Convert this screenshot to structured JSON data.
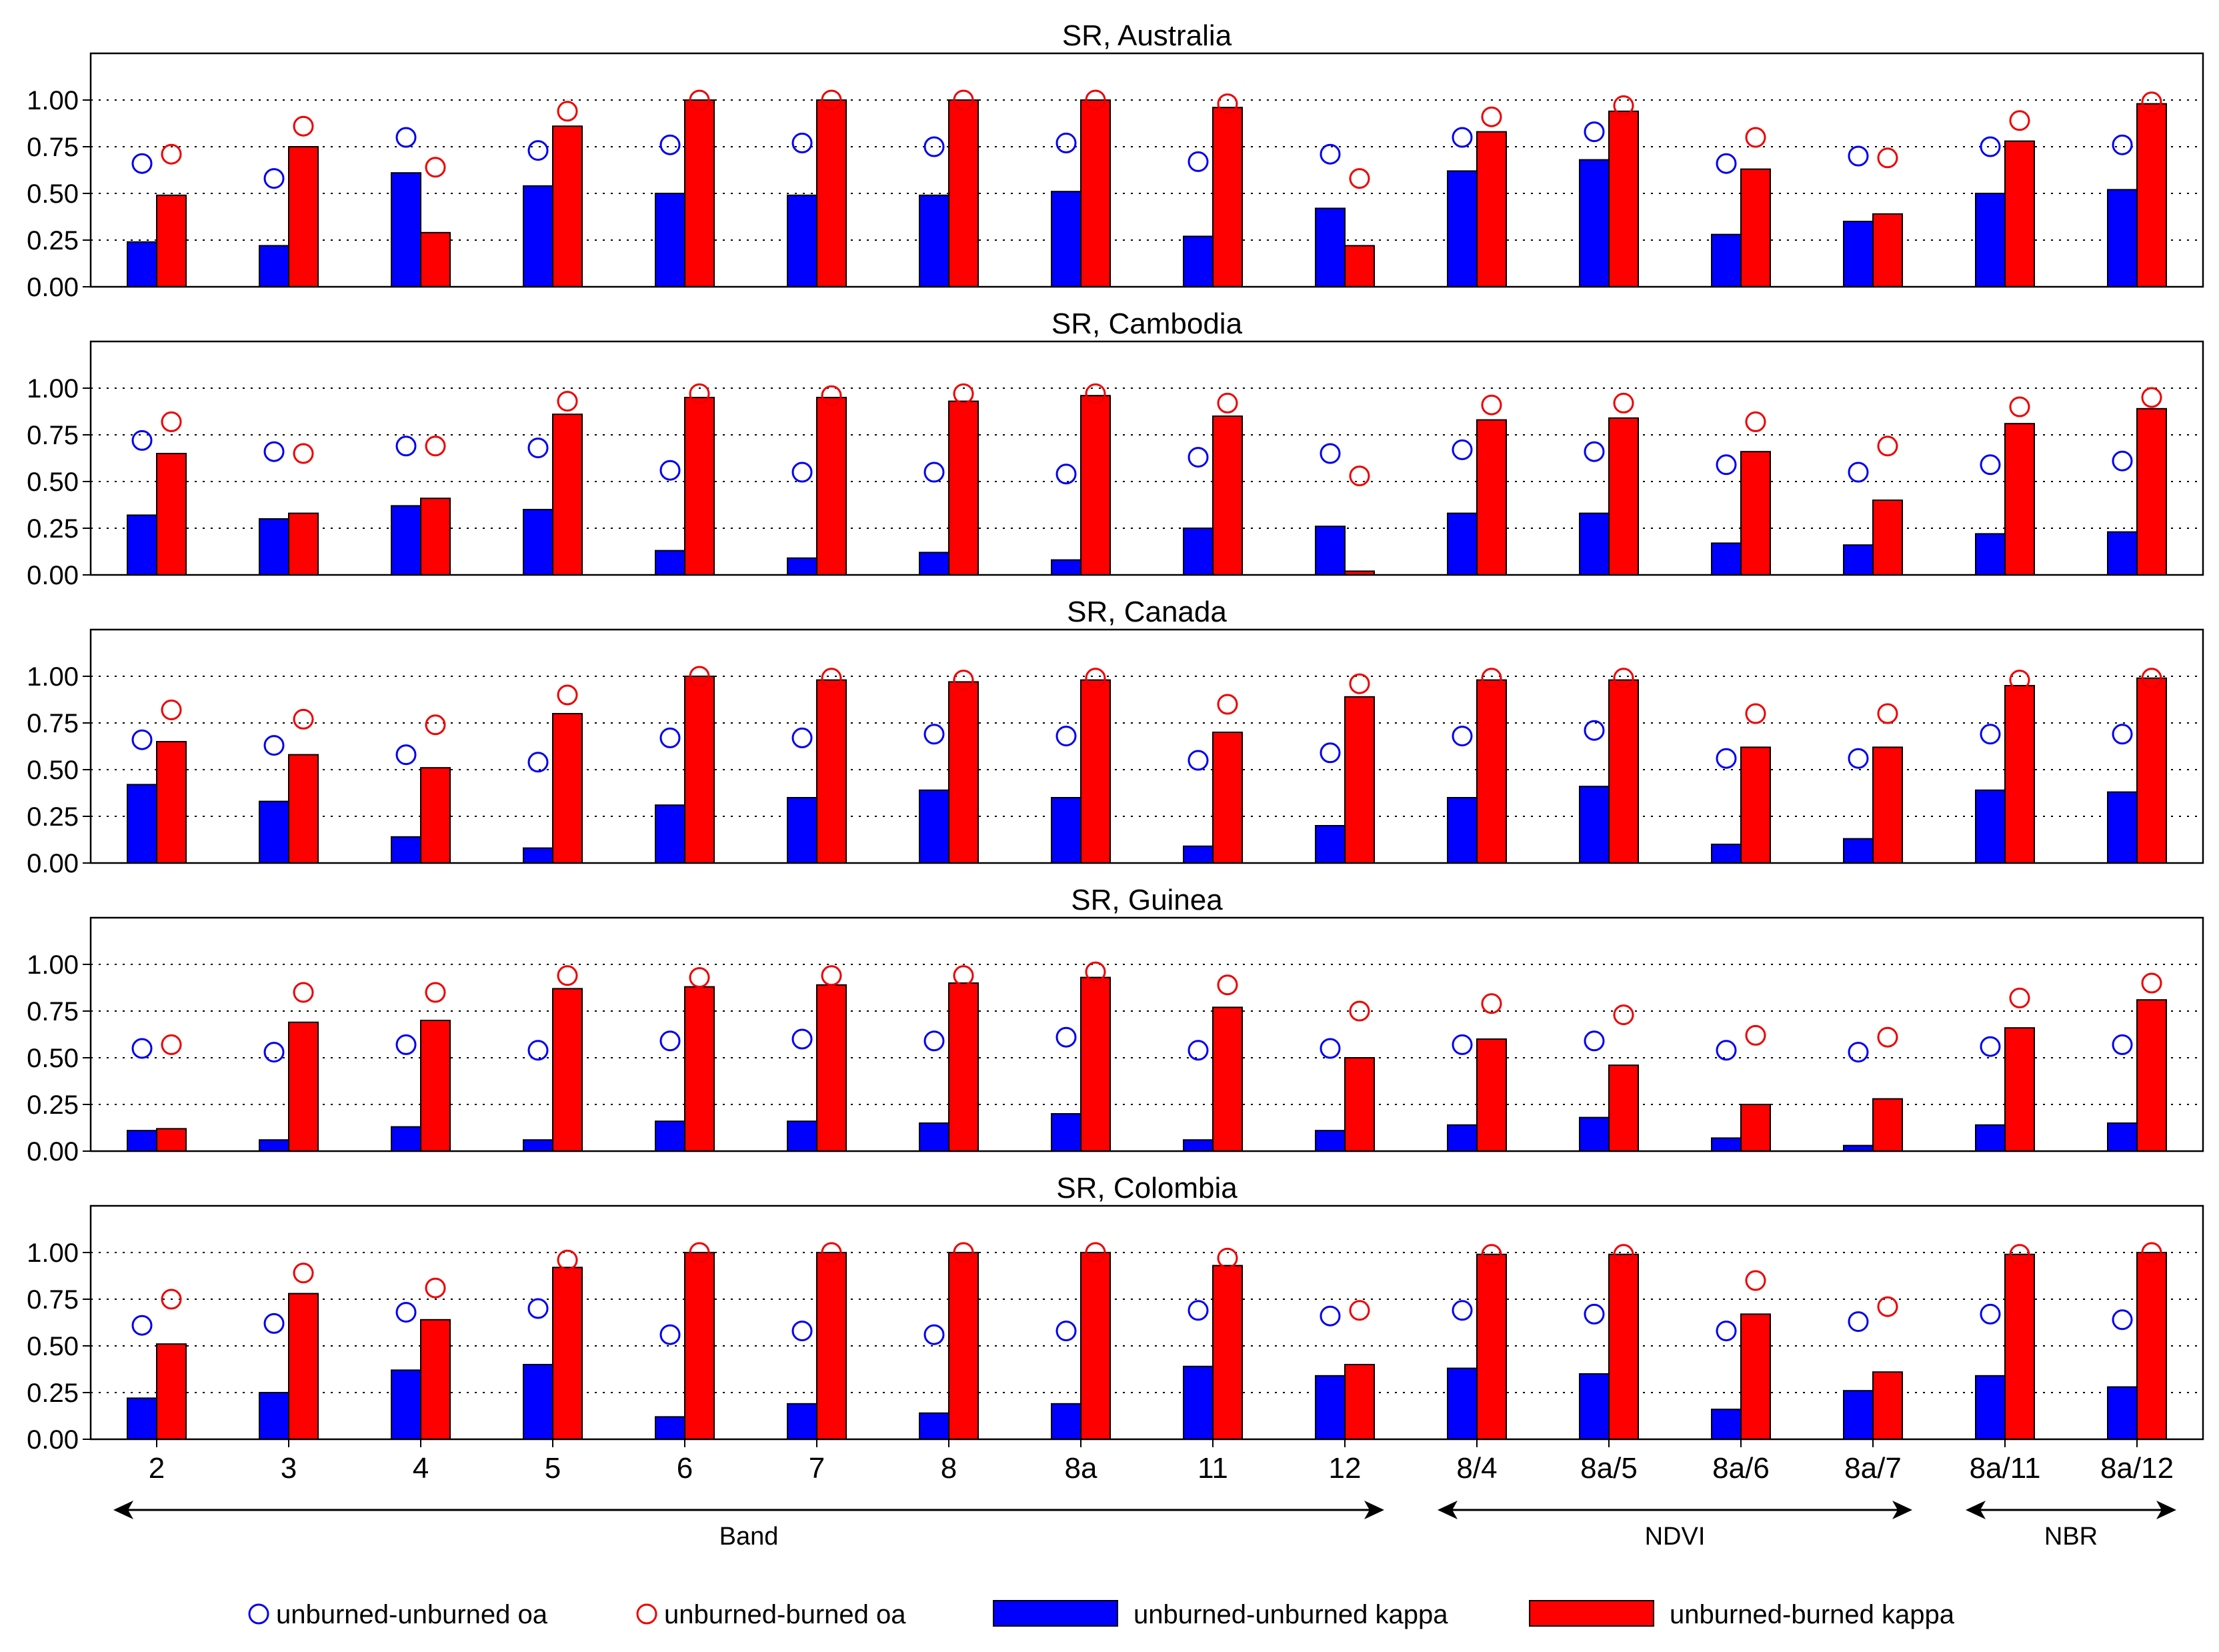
{
  "chart_data": {
    "type": "bar",
    "categories": [
      "2",
      "3",
      "4",
      "5",
      "6",
      "7",
      "8",
      "8a",
      "11",
      "12",
      "8/4",
      "8a/5",
      "8a/6",
      "8a/7",
      "8a/11",
      "8a/12"
    ],
    "ylim": [
      0,
      1.25
    ],
    "yticks": [
      0.0,
      0.25,
      0.5,
      0.75,
      1.0
    ],
    "ytick_labels": [
      "0.00",
      "0.25",
      "0.50",
      "0.75",
      "1.00"
    ],
    "grid": "horizontal dotted",
    "groups": [
      {
        "label": "Band",
        "categories": [
          "2",
          "3",
          "4",
          "5",
          "6",
          "7",
          "8",
          "8a",
          "11",
          "12"
        ]
      },
      {
        "label": "NDVI",
        "categories": [
          "8/4",
          "8a/5",
          "8a/6",
          "8a/7"
        ]
      },
      {
        "label": "NBR",
        "categories": [
          "8a/11",
          "8a/12"
        ]
      }
    ],
    "legend": {
      "placement": "bottom",
      "entries": [
        {
          "key": "uu_oa",
          "label": "unburned-unburned oa",
          "marker": "circle",
          "color": "#0000ee"
        },
        {
          "key": "ub_oa",
          "label": "unburned-burned oa",
          "marker": "circle",
          "color": "#ee0000"
        },
        {
          "key": "uu_kappa",
          "label": "unburned-unburned kappa",
          "marker": "bar",
          "color": "#0000ff"
        },
        {
          "key": "ub_kappa",
          "label": "unburned-burned kappa",
          "marker": "bar",
          "color": "#ff0000"
        }
      ]
    },
    "panels": [
      {
        "title": "SR, Australia",
        "uu_kappa": [
          0.24,
          0.22,
          0.61,
          0.54,
          0.5,
          0.49,
          0.49,
          0.51,
          0.27,
          0.42,
          0.62,
          0.68,
          0.28,
          0.35,
          0.5,
          0.52
        ],
        "ub_kappa": [
          0.49,
          0.75,
          0.29,
          0.86,
          1.0,
          1.0,
          1.0,
          1.0,
          0.96,
          0.22,
          0.83,
          0.94,
          0.63,
          0.39,
          0.78,
          0.98
        ],
        "uu_oa": [
          0.66,
          0.58,
          0.8,
          0.73,
          0.76,
          0.77,
          0.75,
          0.77,
          0.67,
          0.71,
          0.8,
          0.83,
          0.66,
          0.7,
          0.75,
          0.76
        ],
        "ub_oa": [
          0.71,
          0.86,
          0.64,
          0.94,
          1.0,
          1.0,
          1.0,
          1.0,
          0.98,
          0.58,
          0.91,
          0.97,
          0.8,
          0.69,
          0.89,
          0.99
        ]
      },
      {
        "title": "SR, Cambodia",
        "uu_kappa": [
          0.32,
          0.3,
          0.37,
          0.35,
          0.13,
          0.09,
          0.12,
          0.08,
          0.25,
          0.26,
          0.33,
          0.33,
          0.17,
          0.16,
          0.22,
          0.23
        ],
        "ub_kappa": [
          0.65,
          0.33,
          0.41,
          0.86,
          0.95,
          0.95,
          0.93,
          0.96,
          0.85,
          0.02,
          0.83,
          0.84,
          0.66,
          0.4,
          0.81,
          0.89
        ],
        "uu_oa": [
          0.72,
          0.66,
          0.69,
          0.68,
          0.56,
          0.55,
          0.55,
          0.54,
          0.63,
          0.65,
          0.67,
          0.66,
          0.59,
          0.55,
          0.59,
          0.61
        ],
        "ub_oa": [
          0.82,
          0.65,
          0.69,
          0.93,
          0.97,
          0.96,
          0.97,
          0.97,
          0.92,
          0.53,
          0.91,
          0.92,
          0.82,
          0.69,
          0.9,
          0.95
        ]
      },
      {
        "title": "SR, Canada",
        "uu_kappa": [
          0.42,
          0.33,
          0.14,
          0.08,
          0.31,
          0.35,
          0.39,
          0.35,
          0.09,
          0.2,
          0.35,
          0.41,
          0.1,
          0.13,
          0.39,
          0.38
        ],
        "ub_kappa": [
          0.65,
          0.58,
          0.51,
          0.8,
          1.0,
          0.98,
          0.97,
          0.98,
          0.7,
          0.89,
          0.98,
          0.98,
          0.62,
          0.62,
          0.95,
          0.99
        ],
        "uu_oa": [
          0.66,
          0.63,
          0.58,
          0.54,
          0.67,
          0.67,
          0.69,
          0.68,
          0.55,
          0.59,
          0.68,
          0.71,
          0.56,
          0.56,
          0.69,
          0.69
        ],
        "ub_oa": [
          0.82,
          0.77,
          0.74,
          0.9,
          1.0,
          0.99,
          0.98,
          0.99,
          0.85,
          0.96,
          0.99,
          0.99,
          0.8,
          0.8,
          0.98,
          0.99
        ]
      },
      {
        "title": "SR, Guinea",
        "uu_kappa": [
          0.11,
          0.06,
          0.13,
          0.06,
          0.16,
          0.16,
          0.15,
          0.2,
          0.06,
          0.11,
          0.14,
          0.18,
          0.07,
          0.03,
          0.14,
          0.15
        ],
        "ub_kappa": [
          0.12,
          0.69,
          0.7,
          0.87,
          0.88,
          0.89,
          0.9,
          0.93,
          0.77,
          0.5,
          0.6,
          0.46,
          0.25,
          0.28,
          0.66,
          0.81
        ],
        "uu_oa": [
          0.55,
          0.53,
          0.57,
          0.54,
          0.59,
          0.6,
          0.59,
          0.61,
          0.54,
          0.55,
          0.57,
          0.59,
          0.54,
          0.53,
          0.56,
          0.57
        ],
        "ub_oa": [
          0.57,
          0.85,
          0.85,
          0.94,
          0.93,
          0.94,
          0.94,
          0.96,
          0.89,
          0.75,
          0.79,
          0.73,
          0.62,
          0.61,
          0.82,
          0.9
        ]
      },
      {
        "title": "SR, Colombia",
        "uu_kappa": [
          0.22,
          0.25,
          0.37,
          0.4,
          0.12,
          0.19,
          0.14,
          0.19,
          0.39,
          0.34,
          0.38,
          0.35,
          0.16,
          0.26,
          0.34,
          0.28
        ],
        "ub_kappa": [
          0.51,
          0.78,
          0.64,
          0.92,
          1.0,
          1.0,
          1.0,
          1.0,
          0.93,
          0.4,
          0.99,
          0.99,
          0.67,
          0.36,
          0.99,
          1.0
        ],
        "uu_oa": [
          0.61,
          0.62,
          0.68,
          0.7,
          0.56,
          0.58,
          0.56,
          0.58,
          0.69,
          0.66,
          0.69,
          0.67,
          0.58,
          0.63,
          0.67,
          0.64
        ],
        "ub_oa": [
          0.75,
          0.89,
          0.81,
          0.96,
          1.0,
          1.0,
          1.0,
          1.0,
          0.97,
          0.69,
          0.99,
          0.99,
          0.85,
          0.71,
          0.99,
          1.0
        ]
      }
    ]
  }
}
